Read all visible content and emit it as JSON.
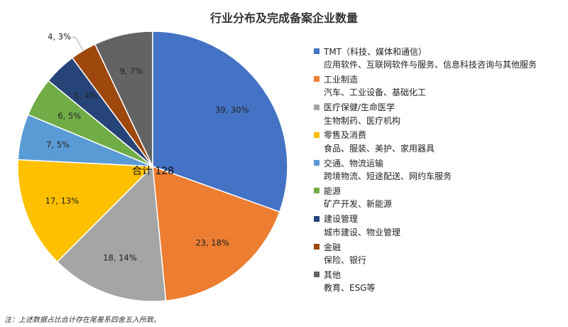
{
  "chart_data": {
    "type": "pie",
    "title": "行业分布及完成备案企业数量",
    "total_label": "合计 128",
    "slices": [
      {
        "name": "TMT（科技、媒体和通信）",
        "desc": "应用软件、互联网软件与服务、信息科技咨询与其他服务",
        "value": 39,
        "label": "39, 30%",
        "color": "#4472C4"
      },
      {
        "name": "工业制造",
        "desc": "汽车、工业设备、基础化工",
        "value": 23,
        "label": "23, 18%",
        "color": "#ED7D31"
      },
      {
        "name": "医疗保健/生命医学",
        "desc": "生物制药、医疗机构",
        "value": 18,
        "label": "18, 14%",
        "color": "#A5A5A5"
      },
      {
        "name": "零售及消费",
        "desc": "食品、服装、美护、家用器具",
        "value": 17,
        "label": "17, 13%",
        "color": "#FFC000"
      },
      {
        "name": "交通、物流运输",
        "desc": "跨境物流、短途配送、网约车服务",
        "value": 7,
        "label": "7, 5%",
        "color": "#5B9BD5"
      },
      {
        "name": "能源",
        "desc": "矿产开发、新能源",
        "value": 6,
        "label": "6, 5%",
        "color": "#70AD47"
      },
      {
        "name": "建设管理",
        "desc": "城市建设、物业管理",
        "value": 5,
        "label": "5, 4%",
        "color": "#264478"
      },
      {
        "name": "金融",
        "desc": "保险、银行",
        "value": 4,
        "label": "4, 3%",
        "color": "#9E480E"
      },
      {
        "name": "其他",
        "desc": "教育、ESG等",
        "value": 9,
        "label": "9, 7%",
        "color": "#636363"
      }
    ],
    "legend_position": "right"
  },
  "footnote": "注：上述数据占比合计存在尾差系四舍五入所致。"
}
